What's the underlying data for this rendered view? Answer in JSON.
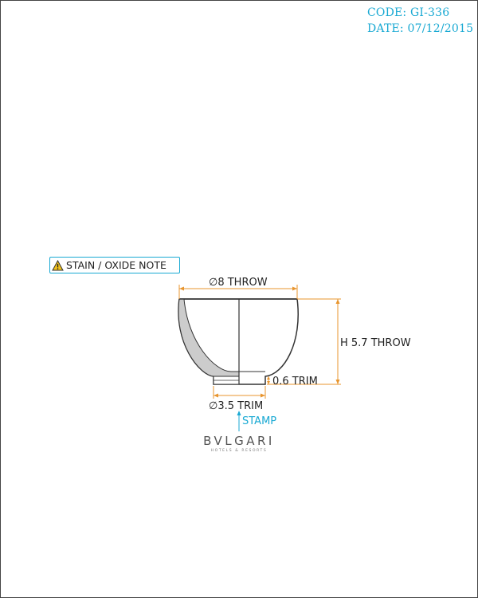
{
  "header": {
    "code": "CODE: GI-336",
    "date": "DATE: 07/12/2015"
  },
  "note": {
    "label": "STAIN / OXIDE NOTE",
    "icon": "warning-icon"
  },
  "dimensions": {
    "rim_diameter": "∅8 THROW",
    "height": "H 5.7 THROW",
    "foot_height": "0.6 TRIM",
    "foot_diameter": "∅3.5 TRIM"
  },
  "stamp": {
    "label": "STAMP"
  },
  "brand": {
    "name": "BVLGARI",
    "tagline": "HOTELS & RESORTS"
  },
  "colors": {
    "accent": "#19a9d3",
    "dimension": "#e8952e",
    "section_fill": "#cccccc",
    "outline": "#333333"
  }
}
